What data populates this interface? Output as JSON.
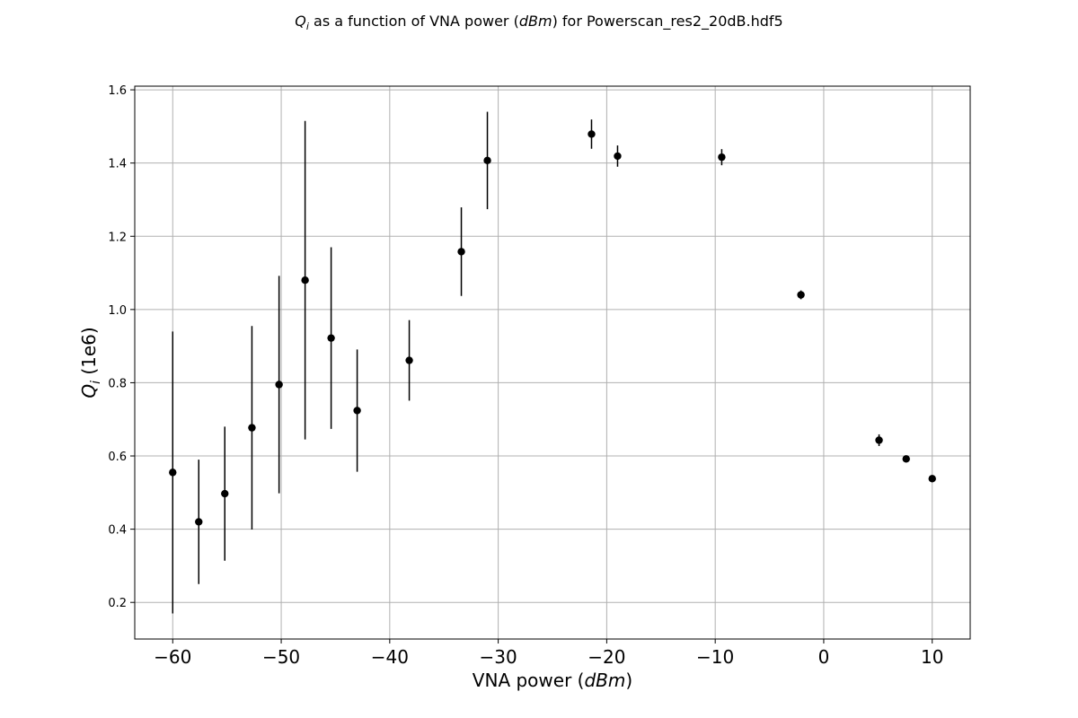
{
  "chart_data": {
    "type": "scatter",
    "title": {
      "var": "Q",
      "sub": "i",
      "pre": " as a function of VNA power (",
      "unit": "dBm",
      "post": ") for Powerscan_res2_20dB.hdf5"
    },
    "xlabel": {
      "pre": "VNA power (",
      "unit": "dBm",
      "post": ")"
    },
    "ylabel": {
      "var": "Q",
      "sub": "i",
      "post": " (1e6)"
    },
    "xlim": [
      -63.5,
      13.5
    ],
    "ylim": [
      0.1,
      1.61
    ],
    "xticks": [
      -60,
      -50,
      -40,
      -30,
      -20,
      -10,
      0,
      10
    ],
    "xtick_labels": [
      "−60",
      "−50",
      "−40",
      "−30",
      "−20",
      "−10",
      "0",
      "10"
    ],
    "yticks": [
      0.2,
      0.4,
      0.6,
      0.8,
      1.0,
      1.2,
      1.4,
      1.6
    ],
    "ytick_labels": [
      "0.2",
      "0.4",
      "0.6",
      "0.8",
      "1.0",
      "1.2",
      "1.4",
      "1.6"
    ],
    "grid": true,
    "marker_color": "#000000",
    "grid_color": "#b0b0b0",
    "points": [
      {
        "x": -60.0,
        "y": 0.555,
        "err": 0.385
      },
      {
        "x": -57.6,
        "y": 0.42,
        "err": 0.17
      },
      {
        "x": -55.2,
        "y": 0.497,
        "err": 0.183
      },
      {
        "x": -52.7,
        "y": 0.677,
        "err": 0.278
      },
      {
        "x": -50.2,
        "y": 0.795,
        "err": 0.297
      },
      {
        "x": -47.8,
        "y": 1.08,
        "err": 0.435
      },
      {
        "x": -45.4,
        "y": 0.922,
        "err": 0.248
      },
      {
        "x": -43.0,
        "y": 0.724,
        "err": 0.167
      },
      {
        "x": -38.2,
        "y": 0.861,
        "err": 0.11
      },
      {
        "x": -33.4,
        "y": 1.158,
        "err": 0.121
      },
      {
        "x": -31.0,
        "y": 1.407,
        "err": 0.133
      },
      {
        "x": -21.4,
        "y": 1.479,
        "err": 0.04
      },
      {
        "x": -19.0,
        "y": 1.419,
        "err": 0.029
      },
      {
        "x": -9.4,
        "y": 1.416,
        "err": 0.022
      },
      {
        "x": -2.1,
        "y": 1.04,
        "err": 0.012
      },
      {
        "x": 5.1,
        "y": 0.643,
        "err": 0.016
      },
      {
        "x": 7.6,
        "y": 0.592,
        "err": 0.007
      },
      {
        "x": 10.0,
        "y": 0.538,
        "err": 0.009
      }
    ]
  }
}
